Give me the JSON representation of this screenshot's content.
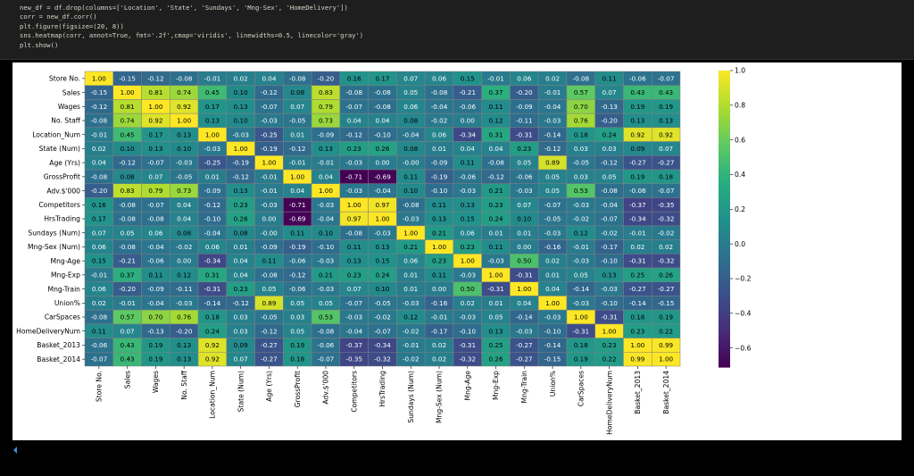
{
  "code": [
    "new_df = df.drop(columns=['Location', 'State', 'Sundays', 'Mng-Sex', 'HomeDelivery'])",
    "corr = new_df.corr()",
    "plt.figure(figsize=(20, 8))",
    "sns.heatmap(corr, annot=True, fmt='.2f',cmap='viridis', linewidths=0.5, linecolor='gray')",
    "plt.show()"
  ],
  "chart_data": {
    "type": "heatmap",
    "colormap": "viridis",
    "categories": [
      "Store No.",
      "Sales",
      "Wages",
      "No. Staff",
      "Location_Num",
      "State (Num)",
      "Age (Yrs)",
      "GrossProfit",
      "Adv.$'000",
      "Competitors",
      "HrsTrading",
      "Sundays (Num)",
      "Mng-Sex (Num)",
      "Mng-Age",
      "Mng-Exp",
      "Mng-Train",
      "Union%",
      "CarSpaces",
      "HomeDeliveryNum",
      "Basket_2013",
      "Basket_2014"
    ],
    "values": [
      [
        1.0,
        -0.15,
        -0.12,
        -0.08,
        -0.01,
        0.02,
        0.04,
        -0.08,
        -0.2,
        0.16,
        0.17,
        0.07,
        0.06,
        0.15,
        -0.01,
        0.06,
        0.02,
        -0.08,
        0.11,
        -0.06,
        -0.07
      ],
      [
        -0.15,
        1.0,
        0.81,
        0.74,
        0.45,
        0.1,
        -0.12,
        0.08,
        0.83,
        -0.08,
        -0.08,
        0.05,
        -0.08,
        -0.21,
        0.37,
        -0.2,
        -0.01,
        0.57,
        0.07,
        0.43,
        0.43
      ],
      [
        -0.12,
        0.81,
        1.0,
        0.92,
        0.17,
        0.13,
        -0.07,
        0.07,
        0.79,
        -0.07,
        -0.08,
        0.06,
        -0.04,
        -0.06,
        0.11,
        -0.09,
        -0.04,
        0.7,
        -0.13,
        0.19,
        0.19
      ],
      [
        -0.08,
        0.74,
        0.92,
        1.0,
        0.13,
        0.1,
        -0.03,
        -0.05,
        0.73,
        0.04,
        0.04,
        0.08,
        -0.02,
        0.0,
        0.12,
        -0.11,
        -0.03,
        0.76,
        -0.2,
        0.13,
        0.13
      ],
      [
        -0.01,
        0.45,
        0.17,
        0.13,
        1.0,
        -0.03,
        -0.25,
        0.01,
        -0.09,
        -0.12,
        -0.1,
        -0.04,
        0.06,
        -0.34,
        0.31,
        -0.31,
        -0.14,
        0.18,
        0.24,
        0.92,
        0.92
      ],
      [
        0.02,
        0.1,
        0.13,
        0.1,
        -0.03,
        1.0,
        -0.19,
        -0.12,
        0.13,
        0.23,
        0.26,
        0.08,
        0.01,
        0.04,
        0.04,
        0.23,
        -0.12,
        0.03,
        0.03,
        0.09,
        0.07
      ],
      [
        0.04,
        -0.12,
        -0.07,
        -0.03,
        -0.25,
        -0.19,
        1.0,
        -0.01,
        -0.01,
        -0.03,
        0.0,
        -0.0,
        -0.09,
        0.11,
        -0.08,
        0.05,
        0.89,
        -0.05,
        -0.12,
        -0.27,
        -0.27
      ],
      [
        -0.08,
        0.08,
        0.07,
        -0.05,
        0.01,
        -0.12,
        -0.01,
        1.0,
        0.04,
        -0.71,
        -0.69,
        0.11,
        -0.19,
        -0.06,
        -0.12,
        -0.06,
        0.05,
        0.03,
        0.05,
        0.19,
        0.18
      ],
      [
        -0.2,
        0.83,
        0.79,
        0.73,
        -0.09,
        0.13,
        -0.01,
        0.04,
        1.0,
        -0.03,
        -0.04,
        0.1,
        -0.1,
        -0.03,
        0.21,
        -0.03,
        0.05,
        0.53,
        -0.08,
        -0.06,
        -0.07
      ],
      [
        0.16,
        -0.08,
        -0.07,
        0.04,
        -0.12,
        0.23,
        -0.03,
        -0.71,
        -0.03,
        1.0,
        0.97,
        -0.08,
        0.11,
        0.13,
        0.23,
        0.07,
        -0.07,
        -0.03,
        -0.04,
        -0.37,
        -0.35
      ],
      [
        0.17,
        -0.08,
        -0.08,
        0.04,
        -0.1,
        0.26,
        0.0,
        -0.69,
        -0.04,
        0.97,
        1.0,
        -0.03,
        0.13,
        0.15,
        0.24,
        0.1,
        -0.05,
        -0.02,
        -0.07,
        -0.34,
        -0.32
      ],
      [
        0.07,
        0.05,
        0.06,
        0.08,
        -0.04,
        0.08,
        -0.0,
        0.11,
        0.1,
        -0.08,
        -0.03,
        1.0,
        0.21,
        0.06,
        0.01,
        0.01,
        -0.03,
        0.12,
        -0.02,
        -0.01,
        -0.02
      ],
      [
        0.06,
        -0.08,
        -0.04,
        -0.02,
        0.06,
        0.01,
        -0.09,
        -0.19,
        -0.1,
        0.11,
        0.13,
        0.21,
        1.0,
        0.23,
        0.11,
        0.0,
        -0.16,
        -0.01,
        -0.17,
        0.02,
        0.02
      ],
      [
        0.15,
        -0.21,
        -0.06,
        0.0,
        -0.34,
        0.04,
        0.11,
        -0.06,
        -0.03,
        0.13,
        0.15,
        0.06,
        0.23,
        1.0,
        -0.03,
        0.5,
        0.02,
        -0.03,
        -0.1,
        -0.31,
        -0.32
      ],
      [
        -0.01,
        0.37,
        0.11,
        0.12,
        0.31,
        0.04,
        -0.08,
        -0.12,
        0.21,
        0.23,
        0.24,
        0.01,
        0.11,
        -0.03,
        1.0,
        -0.31,
        0.01,
        0.05,
        0.13,
        0.25,
        0.26
      ],
      [
        0.06,
        -0.2,
        -0.09,
        -0.11,
        -0.31,
        0.23,
        0.05,
        -0.06,
        -0.03,
        0.07,
        0.1,
        0.01,
        0.0,
        0.5,
        -0.31,
        1.0,
        0.04,
        -0.14,
        -0.03,
        -0.27,
        -0.27
      ],
      [
        0.02,
        -0.01,
        -0.04,
        -0.03,
        -0.14,
        -0.12,
        0.89,
        0.05,
        0.05,
        -0.07,
        -0.05,
        -0.03,
        -0.16,
        0.02,
        0.01,
        0.04,
        1.0,
        -0.03,
        -0.1,
        -0.14,
        -0.15
      ],
      [
        -0.08,
        0.57,
        0.7,
        0.76,
        0.18,
        0.03,
        -0.05,
        0.03,
        0.53,
        -0.03,
        -0.02,
        0.12,
        -0.01,
        -0.03,
        0.05,
        -0.14,
        -0.03,
        1.0,
        -0.31,
        0.18,
        0.19
      ],
      [
        0.11,
        0.07,
        -0.13,
        -0.2,
        0.24,
        0.03,
        -0.12,
        0.05,
        -0.08,
        -0.04,
        -0.07,
        -0.02,
        -0.17,
        -0.1,
        0.13,
        -0.03,
        -0.1,
        -0.31,
        1.0,
        0.23,
        0.22
      ],
      [
        -0.06,
        0.43,
        0.19,
        0.13,
        0.92,
        0.09,
        -0.27,
        0.19,
        -0.06,
        -0.37,
        -0.34,
        -0.01,
        0.02,
        -0.31,
        0.25,
        -0.27,
        -0.14,
        0.18,
        0.23,
        1.0,
        0.99
      ],
      [
        -0.07,
        0.43,
        0.19,
        0.13,
        0.92,
        0.07,
        -0.27,
        0.18,
        -0.07,
        -0.35,
        -0.32,
        -0.02,
        0.02,
        -0.32,
        0.26,
        -0.27,
        -0.15,
        0.19,
        0.22,
        0.99,
        1.0
      ]
    ],
    "value_labels": [
      [
        "1.00",
        "-0.15",
        "-0.12",
        "-0.08",
        "-0.01",
        "0.02",
        "0.04",
        "-0.08",
        "-0.20",
        "0.16",
        "0.17",
        "0.07",
        "0.06",
        "0.15",
        "-0.01",
        "0.06",
        "0.02",
        "-0.08",
        "0.11",
        "-0.06",
        "-0.07"
      ],
      [
        "-0.15",
        "1.00",
        "0.81",
        "0.74",
        "0.45",
        "0.10",
        "-0.12",
        "0.08",
        "0.83",
        "-0.08",
        "-0.08",
        "0.05",
        "-0.08",
        "-0.21",
        "0.37",
        "-0.20",
        "-0.01",
        "0.57",
        "0.07",
        "0.43",
        "0.43"
      ],
      [
        "-0.12",
        "0.81",
        "1.00",
        "0.92",
        "0.17",
        "0.13",
        "-0.07",
        "0.07",
        "0.79",
        "-0.07",
        "-0.08",
        "0.06",
        "-0.04",
        "-0.06",
        "0.11",
        "-0.09",
        "-0.04",
        "0.70",
        "-0.13",
        "0.19",
        "0.19"
      ],
      [
        "-0.08",
        "0.74",
        "0.92",
        "1.00",
        "0.13",
        "0.10",
        "-0.03",
        "-0.05",
        "0.73",
        "0.04",
        "0.04",
        "0.08",
        "-0.02",
        "0.00",
        "0.12",
        "-0.11",
        "-0.03",
        "0.76",
        "-0.20",
        "0.13",
        "0.13"
      ],
      [
        "-0.01",
        "0.45",
        "0.17",
        "0.13",
        "1.00",
        "-0.03",
        "-0.25",
        "0.01",
        "-0.09",
        "-0.12",
        "-0.10",
        "-0.04",
        "0.06",
        "-0.34",
        "0.31",
        "-0.31",
        "-0.14",
        "0.18",
        "0.24",
        "0.92",
        "0.92"
      ],
      [
        "0.02",
        "0.10",
        "0.13",
        "0.10",
        "-0.03",
        "1.00",
        "-0.19",
        "-0.12",
        "0.13",
        "0.23",
        "0.26",
        "0.08",
        "0.01",
        "0.04",
        "0.04",
        "0.23",
        "-0.12",
        "0.03",
        "0.03",
        "0.09",
        "0.07"
      ],
      [
        "0.04",
        "-0.12",
        "-0.07",
        "-0.03",
        "-0.25",
        "-0.19",
        "1.00",
        "-0.01",
        "-0.01",
        "-0.03",
        "0.00",
        "-0.00",
        "-0.09",
        "0.11",
        "-0.08",
        "0.05",
        "0.89",
        "-0.05",
        "-0.12",
        "-0.27",
        "-0.27"
      ],
      [
        "-0.08",
        "0.08",
        "0.07",
        "-0.05",
        "0.01",
        "-0.12",
        "-0.01",
        "1.00",
        "0.04",
        "-0.71",
        "-0.69",
        "0.11",
        "-0.19",
        "-0.06",
        "-0.12",
        "-0.06",
        "0.05",
        "0.03",
        "0.05",
        "0.19",
        "0.18"
      ],
      [
        "-0.20",
        "0.83",
        "0.79",
        "0.73",
        "-0.09",
        "0.13",
        "-0.01",
        "0.04",
        "1.00",
        "-0.03",
        "-0.04",
        "0.10",
        "-0.10",
        "-0.03",
        "0.21",
        "-0.03",
        "0.05",
        "0.53",
        "-0.08",
        "-0.06",
        "-0.07"
      ],
      [
        "0.16",
        "-0.08",
        "-0.07",
        "0.04",
        "-0.12",
        "0.23",
        "-0.03",
        "-0.71",
        "-0.03",
        "1.00",
        "0.97",
        "-0.08",
        "0.11",
        "0.13",
        "0.23",
        "0.07",
        "-0.07",
        "-0.03",
        "-0.04",
        "-0.37",
        "-0.35"
      ],
      [
        "0.17",
        "-0.08",
        "-0.08",
        "0.04",
        "-0.10",
        "0.26",
        "0.00",
        "-0.69",
        "-0.04",
        "0.97",
        "1.00",
        "-0.03",
        "0.13",
        "0.15",
        "0.24",
        "0.10",
        "-0.05",
        "-0.02",
        "-0.07",
        "-0.34",
        "-0.32"
      ],
      [
        "0.07",
        "0.05",
        "0.06",
        "0.08",
        "-0.04",
        "0.08",
        "-0.00",
        "0.11",
        "0.10",
        "-0.08",
        "-0.03",
        "1.00",
        "0.21",
        "0.06",
        "0.01",
        "0.01",
        "-0.03",
        "0.12",
        "-0.02",
        "-0.01",
        "-0.02"
      ],
      [
        "0.06",
        "-0.08",
        "-0.04",
        "-0.02",
        "0.06",
        "0.01",
        "-0.09",
        "-0.19",
        "-0.10",
        "0.11",
        "0.13",
        "0.21",
        "1.00",
        "0.23",
        "0.11",
        "0.00",
        "-0.16",
        "-0.01",
        "-0.17",
        "0.02",
        "0.02"
      ],
      [
        "0.15",
        "-0.21",
        "-0.06",
        "0.00",
        "-0.34",
        "0.04",
        "0.11",
        "-0.06",
        "-0.03",
        "0.13",
        "0.15",
        "0.06",
        "0.23",
        "1.00",
        "-0.03",
        "0.50",
        "0.02",
        "-0.03",
        "-0.10",
        "-0.31",
        "-0.32"
      ],
      [
        "-0.01",
        "0.37",
        "0.11",
        "0.12",
        "0.31",
        "0.04",
        "-0.08",
        "-0.12",
        "0.21",
        "0.23",
        "0.24",
        "0.01",
        "0.11",
        "-0.03",
        "1.00",
        "-0.31",
        "0.01",
        "0.05",
        "0.13",
        "0.25",
        "0.26"
      ],
      [
        "0.06",
        "-0.20",
        "-0.09",
        "-0.11",
        "-0.31",
        "0.23",
        "0.05",
        "-0.06",
        "-0.03",
        "0.07",
        "0.10",
        "0.01",
        "0.00",
        "0.50",
        "-0.31",
        "1.00",
        "0.04",
        "-0.14",
        "-0.03",
        "-0.27",
        "-0.27"
      ],
      [
        "0.02",
        "-0.01",
        "-0.04",
        "-0.03",
        "-0.14",
        "-0.12",
        "0.89",
        "0.05",
        "0.05",
        "-0.07",
        "-0.05",
        "-0.03",
        "-0.16",
        "0.02",
        "0.01",
        "0.04",
        "1.00",
        "-0.03",
        "-0.10",
        "-0.14",
        "-0.15"
      ],
      [
        "-0.08",
        "0.57",
        "0.70",
        "0.76",
        "0.18",
        "0.03",
        "-0.05",
        "0.03",
        "0.53",
        "-0.03",
        "-0.02",
        "0.12",
        "-0.01",
        "-0.03",
        "0.05",
        "-0.14",
        "-0.03",
        "1.00",
        "-0.31",
        "0.18",
        "0.19"
      ],
      [
        "0.11",
        "0.07",
        "-0.13",
        "-0.20",
        "0.24",
        "0.03",
        "-0.12",
        "0.05",
        "-0.08",
        "-0.04",
        "-0.07",
        "-0.02",
        "-0.17",
        "-0.10",
        "0.13",
        "-0.03",
        "-0.10",
        "-0.31",
        "1.00",
        "0.23",
        "0.22"
      ],
      [
        "-0.06",
        "0.43",
        "0.19",
        "0.13",
        "0.92",
        "0.09",
        "-0.27",
        "0.19",
        "-0.06",
        "-0.37",
        "-0.34",
        "-0.01",
        "0.02",
        "-0.31",
        "0.25",
        "-0.27",
        "-0.14",
        "0.18",
        "0.23",
        "1.00",
        "0.99"
      ],
      [
        "-0.07",
        "0.43",
        "0.19",
        "0.13",
        "0.92",
        "0.07",
        "-0.27",
        "0.18",
        "-0.07",
        "-0.35",
        "-0.32",
        "-0.02",
        "0.02",
        "-0.32",
        "0.26",
        "-0.27",
        "-0.15",
        "0.19",
        "0.22",
        "0.99",
        "1.00"
      ]
    ],
    "clim": [
      -0.71,
      1.0
    ],
    "cticks": [
      {
        "value": -0.6,
        "label": "−0.6"
      },
      {
        "value": -0.4,
        "label": "−0.4"
      },
      {
        "value": -0.2,
        "label": "−0.2"
      },
      {
        "value": 0,
        "label": "0.0"
      },
      0.2,
      0.4,
      0.6,
      0.8,
      {
        "value": 1.0,
        "label": "1.0"
      }
    ],
    "cell_border_color": "gray"
  }
}
